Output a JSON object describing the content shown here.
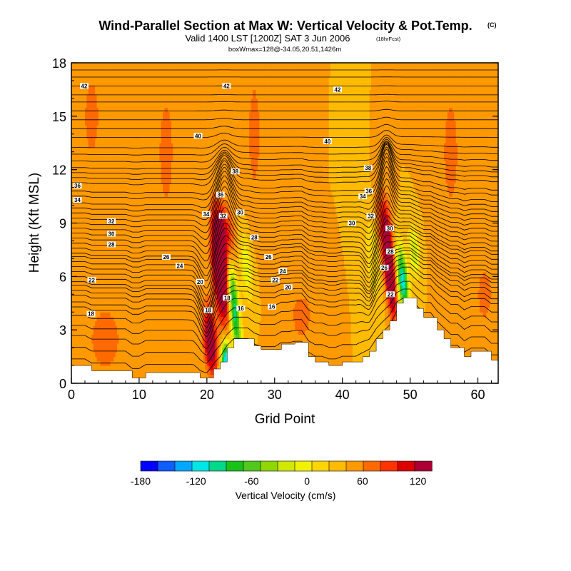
{
  "chart_data": {
    "type": "heatmap",
    "title": "Wind-Parallel Section at Max W: Vertical Velocity & Pot.Temp.",
    "title_mark": "(C)",
    "subtitle": "Valid 1400 LST [1200Z] SAT 3 Jun 2006",
    "subtitle_note": "(18hrFcst)",
    "subtitle2": "boxWmax=128@-34.05,20.51,1426m",
    "xlabel": "Grid Point",
    "ylabel": "Height (Kft MSL)",
    "xlim": [
      0,
      63
    ],
    "ylim": [
      0,
      18
    ],
    "x_ticks": [
      0,
      10,
      20,
      30,
      40,
      50,
      60
    ],
    "y_ticks": [
      0,
      3,
      6,
      9,
      12,
      15,
      18
    ],
    "colorbar": {
      "label": "Vertical Velocity (cm/s)",
      "tick_values": [
        -180,
        -120,
        -60,
        0,
        60,
        120
      ],
      "tick_labels": [
        "-180",
        "-120",
        "-60",
        "0",
        "60",
        "120"
      ],
      "min": -180,
      "max": 135,
      "step": 15,
      "colors": [
        "#0000ff",
        "#0f5cff",
        "#00a8ff",
        "#00e6e6",
        "#00d88a",
        "#19c219",
        "#52c81c",
        "#90d800",
        "#cfe800",
        "#f2f200",
        "#ffd500",
        "#ffbb00",
        "#ff9900",
        "#ff6a00",
        "#ff3300",
        "#dd0000",
        "#aa0033"
      ]
    },
    "terrain_kft": [
      1.0,
      1.0,
      1.0,
      0.7,
      0.7,
      0.7,
      0.7,
      0.7,
      0.7,
      0.3,
      0.3,
      0.6,
      0.6,
      0.6,
      0.6,
      0.6,
      0.6,
      0.6,
      0.6,
      0.3,
      0.3,
      0.8,
      1.2,
      2.0,
      2.5,
      2.5,
      2.5,
      2.1,
      1.9,
      1.9,
      1.9,
      2.2,
      2.2,
      2.3,
      2.3,
      1.5,
      1.2,
      1.2,
      1.0,
      1.0,
      1.2,
      1.2,
      1.2,
      1.5,
      1.8,
      2.5,
      3.0,
      3.5,
      4.5,
      4.8,
      4.8,
      4.2,
      3.7,
      3.7,
      3.0,
      2.5,
      2.0,
      2.0,
      1.5,
      1.8,
      1.8,
      1.8,
      1.3,
      1.3
    ],
    "theta_contours": [
      {
        "label": "16",
        "y_kft": 3.7
      },
      {
        "label": "18",
        "y_kft": 4.0
      },
      {
        "label": "20",
        "y_kft": 5.5
      },
      {
        "label": "22",
        "y_kft": 5.8
      },
      {
        "label": "24",
        "y_kft": 6.4
      },
      {
        "label": "26",
        "y_kft": 6.9
      },
      {
        "label": "28",
        "y_kft": 7.8
      },
      {
        "label": "30",
        "y_kft": 8.4
      },
      {
        "label": "32",
        "y_kft": 9.0
      },
      {
        "label": "34",
        "y_kft": 10.3
      },
      {
        "label": "36",
        "y_kft": 11.1
      },
      {
        "label": "38",
        "y_kft": 12.0
      },
      {
        "label": "40",
        "y_kft": 13.8
      },
      {
        "label": "42",
        "y_kft": 16.7
      }
    ],
    "contour_labels": [
      {
        "text": "42",
        "x": 1.9,
        "y": 16.7
      },
      {
        "text": "42",
        "x": 22.9,
        "y": 16.7
      },
      {
        "text": "42",
        "x": 39.3,
        "y": 16.5
      },
      {
        "text": "40",
        "x": 18.7,
        "y": 13.9
      },
      {
        "text": "40",
        "x": 37.8,
        "y": 13.6
      },
      {
        "text": "38",
        "x": 24.2,
        "y": 11.9
      },
      {
        "text": "38",
        "x": 43.8,
        "y": 12.1
      },
      {
        "text": "36",
        "x": 0.9,
        "y": 11.1
      },
      {
        "text": "36",
        "x": 22.0,
        "y": 10.6
      },
      {
        "text": "36",
        "x": 43.9,
        "y": 10.8
      },
      {
        "text": "34",
        "x": 0.9,
        "y": 10.3
      },
      {
        "text": "34",
        "x": 19.9,
        "y": 9.5
      },
      {
        "text": "34",
        "x": 43.0,
        "y": 10.5
      },
      {
        "text": "32",
        "x": 5.9,
        "y": 9.1
      },
      {
        "text": "32",
        "x": 22.4,
        "y": 9.4
      },
      {
        "text": "32",
        "x": 44.2,
        "y": 9.4
      },
      {
        "text": "30",
        "x": 5.9,
        "y": 8.4
      },
      {
        "text": "30",
        "x": 24.9,
        "y": 9.6
      },
      {
        "text": "30",
        "x": 41.4,
        "y": 9.0
      },
      {
        "text": "30",
        "x": 47.0,
        "y": 8.7
      },
      {
        "text": "28",
        "x": 5.9,
        "y": 7.8
      },
      {
        "text": "28",
        "x": 27.0,
        "y": 8.2
      },
      {
        "text": "28",
        "x": 47.1,
        "y": 7.4
      },
      {
        "text": "26",
        "x": 14.0,
        "y": 7.1
      },
      {
        "text": "26",
        "x": 29.1,
        "y": 7.1
      },
      {
        "text": "26",
        "x": 46.2,
        "y": 6.5
      },
      {
        "text": "24",
        "x": 16.0,
        "y": 6.6
      },
      {
        "text": "24",
        "x": 31.2,
        "y": 6.3
      },
      {
        "text": "22",
        "x": 3.0,
        "y": 5.8
      },
      {
        "text": "22",
        "x": 30.1,
        "y": 5.8
      },
      {
        "text": "22",
        "x": 47.1,
        "y": 5.0
      },
      {
        "text": "20",
        "x": 19.0,
        "y": 5.7
      },
      {
        "text": "20",
        "x": 32.0,
        "y": 5.4
      },
      {
        "text": "18",
        "x": 2.9,
        "y": 3.9
      },
      {
        "text": "18",
        "x": 23.0,
        "y": 4.8
      },
      {
        "text": "18",
        "x": 20.2,
        "y": 4.1
      },
      {
        "text": "16",
        "x": 25.0,
        "y": 4.2
      },
      {
        "text": "16",
        "x": 29.6,
        "y": 4.3
      }
    ],
    "w_features": [
      {
        "x": 22.0,
        "y": 6.4,
        "sx": 0.75,
        "sy": 2.0,
        "skew": -0.22,
        "value": 128
      },
      {
        "x": 20.5,
        "y": 2.4,
        "sx": 0.65,
        "sy": 1.3,
        "skew": -0.2,
        "value": 95
      },
      {
        "x": 22.8,
        "y": 8.2,
        "sx": 0.9,
        "sy": 1.3,
        "skew": -0.25,
        "value": 60
      },
      {
        "x": 24.0,
        "y": 4.3,
        "sx": 0.55,
        "sy": 2.1,
        "skew": -0.25,
        "value": -120
      },
      {
        "x": 25.8,
        "y": 6.6,
        "sx": 0.7,
        "sy": 1.4,
        "skew": -0.2,
        "value": -45
      },
      {
        "x": 22.8,
        "y": 1.3,
        "sx": 0.5,
        "sy": 0.8,
        "skew": 0,
        "value": -140
      },
      {
        "x": 47.0,
        "y": 6.3,
        "sx": 0.5,
        "sy": 1.7,
        "skew": -0.22,
        "value": 115
      },
      {
        "x": 46.2,
        "y": 8.9,
        "sx": 0.75,
        "sy": 1.3,
        "skew": -0.25,
        "value": 45
      },
      {
        "x": 48.9,
        "y": 5.8,
        "sx": 0.55,
        "sy": 1.3,
        "skew": -0.25,
        "value": -130
      },
      {
        "x": 50.6,
        "y": 7.4,
        "sx": 0.6,
        "sy": 1.0,
        "skew": -0.2,
        "value": -55
      },
      {
        "x": 44.5,
        "y": 7.0,
        "sx": 0.7,
        "sy": 1.8,
        "skew": -0.2,
        "value": -30
      },
      {
        "x": 34.0,
        "y": 3.8,
        "sx": 1.2,
        "sy": 1.0,
        "skew": 0,
        "value": 25
      },
      {
        "x": 5.0,
        "y": 2.5,
        "sx": 2.5,
        "sy": 2.0,
        "skew": 0,
        "value": 20
      },
      {
        "x": 3.0,
        "y": 15.0,
        "sx": 1.5,
        "sy": 3.0,
        "skew": 0,
        "value": 18
      },
      {
        "x": 14.0,
        "y": 13.0,
        "sx": 1.5,
        "sy": 4.0,
        "skew": 0,
        "value": 18
      },
      {
        "x": 27.0,
        "y": 14.0,
        "sx": 1.2,
        "sy": 4.0,
        "skew": 0,
        "value": 18
      },
      {
        "x": 56.0,
        "y": 13.0,
        "sx": 1.5,
        "sy": 4.0,
        "skew": 0,
        "value": 18
      },
      {
        "x": 61.0,
        "y": 5.0,
        "sx": 1.5,
        "sy": 2.0,
        "skew": 0,
        "value": 18
      }
    ]
  }
}
